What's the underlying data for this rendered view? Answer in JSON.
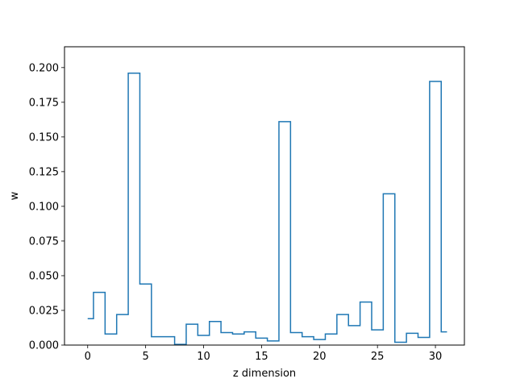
{
  "chart_data": {
    "type": "line",
    "style": "step-mid",
    "title": "",
    "xlabel": "z dimension",
    "ylabel": "w",
    "xlim": [
      -2.0,
      32.5
    ],
    "ylim": [
      0.0,
      0.215
    ],
    "xticks": [
      0,
      5,
      10,
      15,
      20,
      25,
      30
    ],
    "yticks": [
      0.0,
      0.025,
      0.05,
      0.075,
      0.1,
      0.125,
      0.15,
      0.175,
      0.2
    ],
    "ytick_labels": [
      "0.000",
      "0.025",
      "0.050",
      "0.075",
      "0.100",
      "0.125",
      "0.150",
      "0.175",
      "0.200"
    ],
    "grid": false,
    "line_color": "#1f77b4",
    "x": [
      0,
      1,
      2,
      3,
      4,
      5,
      6,
      7,
      8,
      9,
      10,
      11,
      12,
      13,
      14,
      15,
      16,
      17,
      18,
      19,
      20,
      21,
      22,
      23,
      24,
      25,
      26,
      27,
      28,
      29,
      30,
      31
    ],
    "y": [
      0.019,
      0.038,
      0.008,
      0.022,
      0.196,
      0.044,
      0.006,
      0.006,
      0.0005,
      0.015,
      0.007,
      0.017,
      0.009,
      0.008,
      0.0095,
      0.005,
      0.003,
      0.161,
      0.009,
      0.006,
      0.004,
      0.008,
      0.022,
      0.014,
      0.031,
      0.011,
      0.109,
      0.002,
      0.0085,
      0.0055,
      0.19,
      0.0095
    ]
  }
}
